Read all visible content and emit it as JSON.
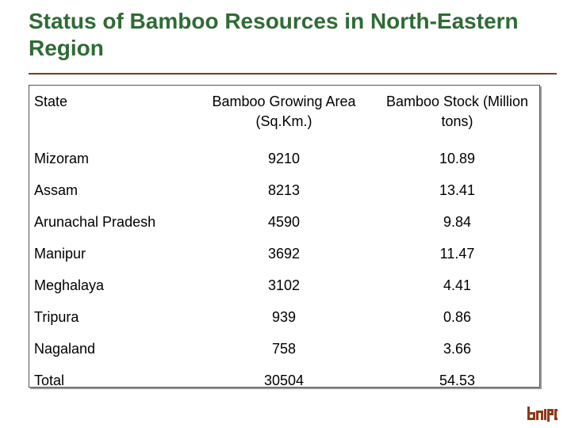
{
  "slide": {
    "title": "Status of Bamboo Resources in North-Eastern Region"
  },
  "table": {
    "headers": {
      "state": "State",
      "area": "Bamboo Growing Area (Sq.Km.)",
      "stock": "Bamboo Stock (Million tons)"
    },
    "rows": [
      {
        "state": "Mizoram",
        "area": "9210",
        "stock": "10.89"
      },
      {
        "state": "Assam",
        "area": "8213",
        "stock": "13.41"
      },
      {
        "state": "Arunachal Pradesh",
        "area": "4590",
        "stock": "9.84"
      },
      {
        "state": "Manipur",
        "area": "3692",
        "stock": "11.47"
      },
      {
        "state": "Meghalaya",
        "area": "3102",
        "stock": "4.41"
      },
      {
        "state": "Tripura",
        "area": "939",
        "stock": "0.86"
      },
      {
        "state": "Nagaland",
        "area": "758",
        "stock": "3.66"
      },
      {
        "state": "Total",
        "area": "30504",
        "stock": "54.53"
      }
    ]
  },
  "colors": {
    "title": "#2f6b35",
    "rule": "#7a3b2e",
    "logo": "#8b3a1a"
  },
  "logo": {
    "icon": "company-logo-icon"
  }
}
